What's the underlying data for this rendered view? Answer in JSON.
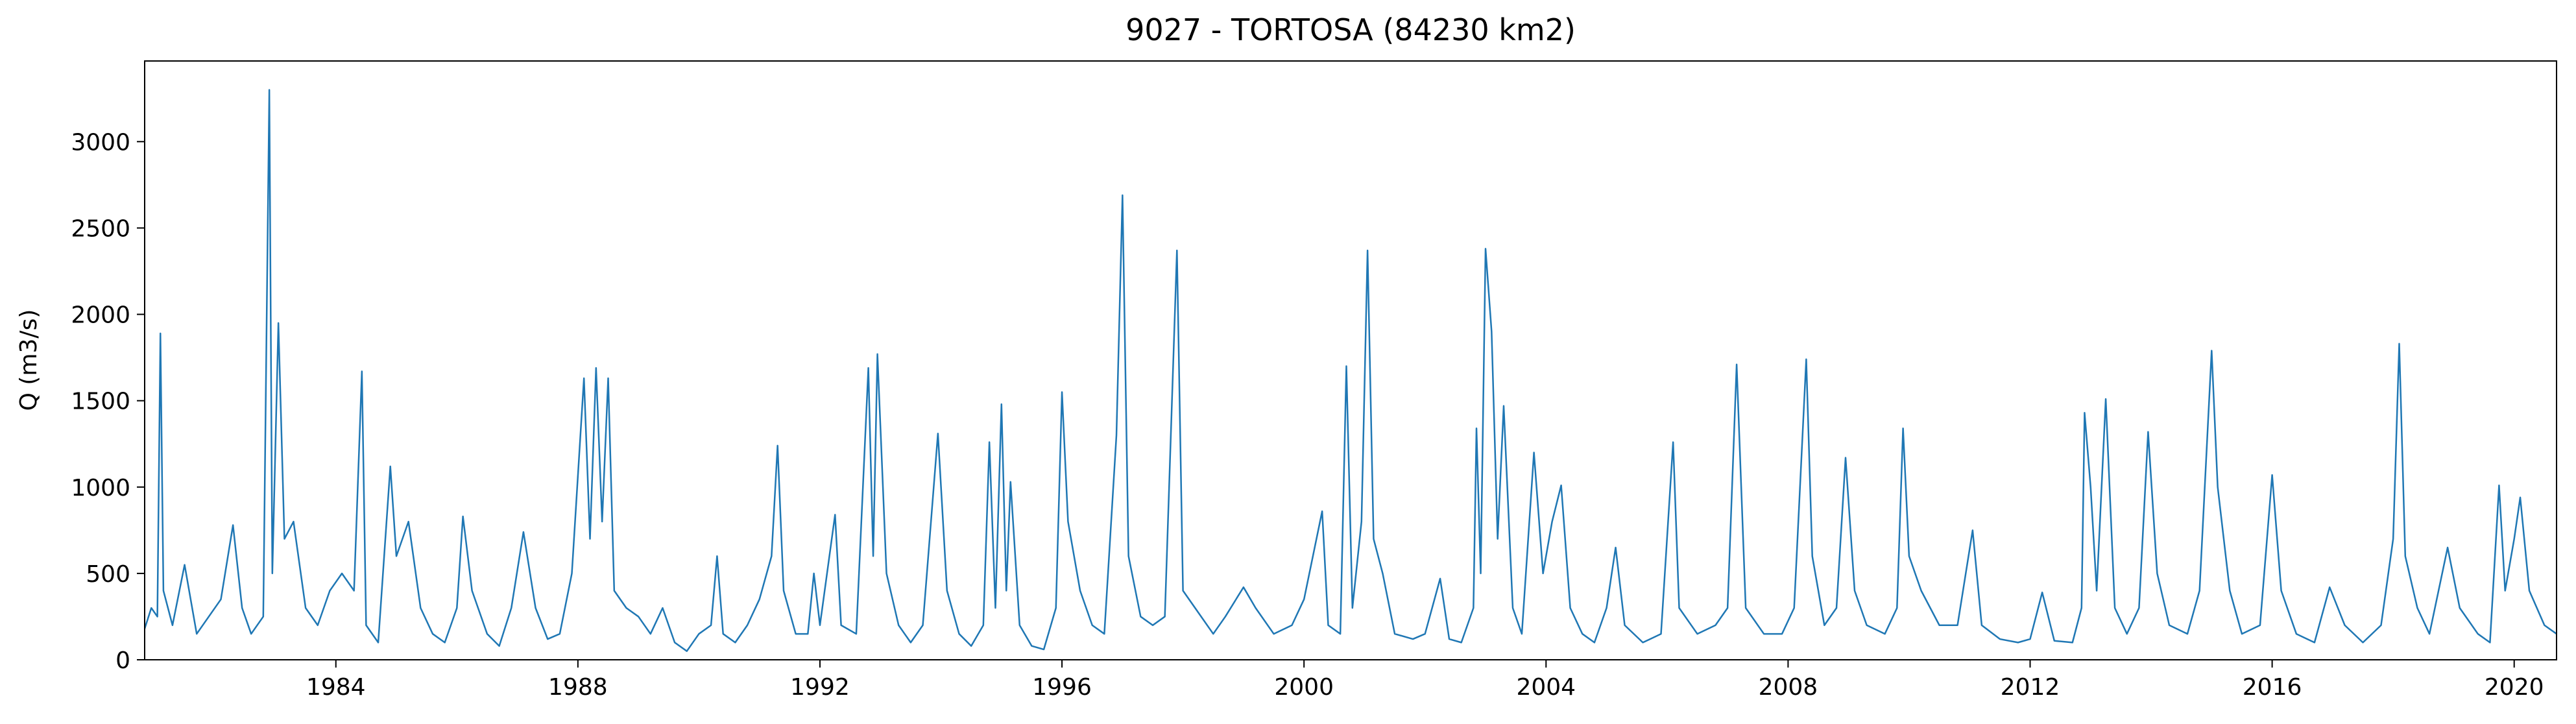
{
  "chart_data": {
    "type": "line",
    "title": "9027 - TORTOSA (84230 km2)",
    "ylabel": "Q (m3/s)",
    "color": "#1f77b4",
    "xlim": [
      1980.84,
      2020.7
    ],
    "xticks": [
      1984,
      1988,
      1992,
      1996,
      2000,
      2004,
      2008,
      2012,
      2016,
      2020
    ],
    "ylim": [
      0,
      3467
    ],
    "yticks": [
      0,
      500,
      1000,
      1500,
      2000,
      2500,
      3000
    ],
    "x": [
      1980.84,
      1980.95,
      1981.05,
      1981.1,
      1981.15,
      1981.3,
      1981.5,
      1981.7,
      1981.9,
      1982.1,
      1982.3,
      1982.45,
      1982.6,
      1982.8,
      1982.9,
      1982.95,
      1983.05,
      1983.15,
      1983.3,
      1983.5,
      1983.7,
      1983.9,
      1984.1,
      1984.3,
      1984.43,
      1984.5,
      1984.7,
      1984.9,
      1985.0,
      1985.2,
      1985.4,
      1985.6,
      1985.8,
      1986.0,
      1986.1,
      1986.25,
      1986.5,
      1986.7,
      1986.9,
      1987.1,
      1987.3,
      1987.5,
      1987.7,
      1987.9,
      1988.1,
      1988.2,
      1988.3,
      1988.4,
      1988.5,
      1988.6,
      1988.8,
      1989.0,
      1989.2,
      1989.4,
      1989.6,
      1989.8,
      1990.0,
      1990.2,
      1990.3,
      1990.4,
      1990.6,
      1990.8,
      1991.0,
      1991.2,
      1991.3,
      1991.4,
      1991.6,
      1991.8,
      1991.9,
      1992.0,
      1992.25,
      1992.35,
      1992.6,
      1992.8,
      1992.88,
      1992.95,
      1993.1,
      1993.3,
      1993.5,
      1993.7,
      1993.95,
      1994.1,
      1994.3,
      1994.5,
      1994.7,
      1994.8,
      1994.9,
      1995.0,
      1995.08,
      1995.15,
      1995.3,
      1995.5,
      1995.7,
      1995.9,
      1996.0,
      1996.1,
      1996.3,
      1996.5,
      1996.7,
      1996.9,
      1997.0,
      1997.1,
      1997.3,
      1997.5,
      1997.7,
      1997.9,
      1998.0,
      1998.2,
      1998.5,
      1998.7,
      1999.0,
      1999.2,
      1999.5,
      1999.8,
      2000.0,
      2000.3,
      2000.4,
      2000.6,
      2000.7,
      2000.8,
      2000.95,
      2001.05,
      2001.15,
      2001.3,
      2001.5,
      2001.8,
      2002.0,
      2002.25,
      2002.4,
      2002.6,
      2002.8,
      2002.85,
      2002.92,
      2003.0,
      2003.1,
      2003.2,
      2003.3,
      2003.45,
      2003.6,
      2003.8,
      2003.95,
      2004.1,
      2004.25,
      2004.4,
      2004.6,
      2004.8,
      2005.0,
      2005.15,
      2005.3,
      2005.6,
      2005.9,
      2006.1,
      2006.2,
      2006.5,
      2006.8,
      2007.0,
      2007.15,
      2007.3,
      2007.6,
      2007.9,
      2008.1,
      2008.3,
      2008.4,
      2008.6,
      2008.8,
      2008.95,
      2009.1,
      2009.3,
      2009.6,
      2009.8,
      2009.9,
      2010.0,
      2010.2,
      2010.5,
      2010.8,
      2011.05,
      2011.2,
      2011.5,
      2011.8,
      2012.0,
      2012.2,
      2012.4,
      2012.7,
      2012.85,
      2012.9,
      2013.0,
      2013.1,
      2013.25,
      2013.4,
      2013.6,
      2013.8,
      2013.95,
      2014.1,
      2014.3,
      2014.6,
      2014.8,
      2015.0,
      2015.1,
      2015.3,
      2015.5,
      2015.8,
      2016.0,
      2016.15,
      2016.4,
      2016.7,
      2016.95,
      2017.2,
      2017.5,
      2017.8,
      2018.0,
      2018.1,
      2018.2,
      2018.4,
      2018.6,
      2018.9,
      2019.1,
      2019.4,
      2019.6,
      2019.75,
      2019.85,
      2020.0,
      2020.1,
      2020.25,
      2020.5,
      2020.7
    ],
    "values": [
      180,
      300,
      250,
      1890,
      400,
      200,
      550,
      150,
      250,
      350,
      780,
      300,
      150,
      250,
      3300,
      500,
      1950,
      700,
      800,
      300,
      200,
      400,
      500,
      400,
      1670,
      200,
      100,
      1120,
      600,
      800,
      300,
      150,
      100,
      300,
      830,
      400,
      150,
      80,
      300,
      740,
      300,
      120,
      150,
      500,
      1630,
      700,
      1690,
      800,
      1630,
      400,
      300,
      250,
      150,
      300,
      100,
      50,
      150,
      200,
      600,
      150,
      100,
      200,
      350,
      600,
      1240,
      400,
      150,
      150,
      500,
      200,
      840,
      200,
      150,
      1690,
      600,
      1770,
      500,
      200,
      100,
      200,
      1310,
      400,
      150,
      80,
      200,
      1260,
      300,
      1480,
      400,
      1030,
      200,
      80,
      60,
      300,
      1550,
      800,
      400,
      200,
      150,
      1300,
      2690,
      600,
      250,
      200,
      250,
      2370,
      400,
      300,
      150,
      250,
      420,
      300,
      150,
      200,
      350,
      860,
      200,
      150,
      1700,
      300,
      800,
      2370,
      700,
      500,
      150,
      120,
      150,
      470,
      120,
      100,
      300,
      1340,
      500,
      2380,
      1900,
      700,
      1470,
      300,
      150,
      1200,
      500,
      800,
      1010,
      300,
      150,
      100,
      300,
      650,
      200,
      100,
      150,
      1260,
      300,
      150,
      200,
      300,
      1710,
      300,
      150,
      150,
      300,
      1740,
      600,
      200,
      300,
      1170,
      400,
      200,
      150,
      300,
      1340,
      600,
      400,
      200,
      200,
      750,
      200,
      120,
      100,
      120,
      390,
      110,
      100,
      300,
      1430,
      1000,
      400,
      1510,
      300,
      150,
      300,
      1320,
      500,
      200,
      150,
      400,
      1790,
      1000,
      400,
      150,
      200,
      1070,
      400,
      150,
      100,
      420,
      200,
      100,
      200,
      700,
      1830,
      600,
      300,
      150,
      650,
      300,
      150,
      100,
      1010,
      400,
      700,
      940,
      400,
      200,
      150
    ]
  }
}
